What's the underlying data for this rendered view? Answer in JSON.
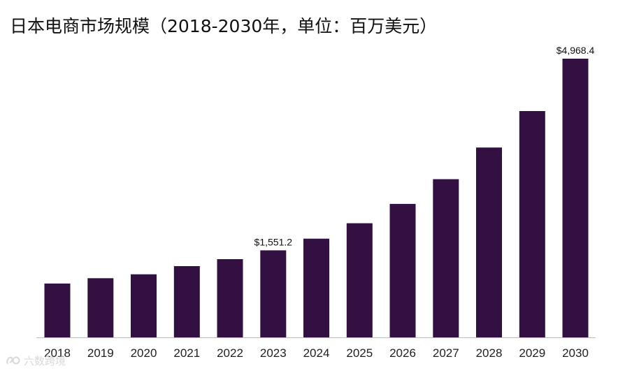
{
  "chart_data": {
    "type": "bar",
    "title": "日本电商市场规模（2018-2030年，单位：百万美元）",
    "xlabel": "",
    "ylabel": "",
    "categories": [
      "2018",
      "2019",
      "2020",
      "2021",
      "2022",
      "2023",
      "2024",
      "2025",
      "2026",
      "2027",
      "2028",
      "2029",
      "2030"
    ],
    "values": [
      960,
      1055,
      1125,
      1270,
      1395,
      1551.2,
      1759,
      2035,
      2380,
      2820,
      3385,
      4035,
      4968.4
    ],
    "data_labels": [
      {
        "category": "2023",
        "text": "$1,551.2"
      },
      {
        "category": "2030",
        "text": "$4,968.4"
      }
    ],
    "ylim": [
      0,
      5000
    ],
    "bar_color": "#331042",
    "grid": false,
    "legend": "none"
  },
  "watermark": {
    "text": "六数跨境",
    "icon": "logo-icon"
  }
}
